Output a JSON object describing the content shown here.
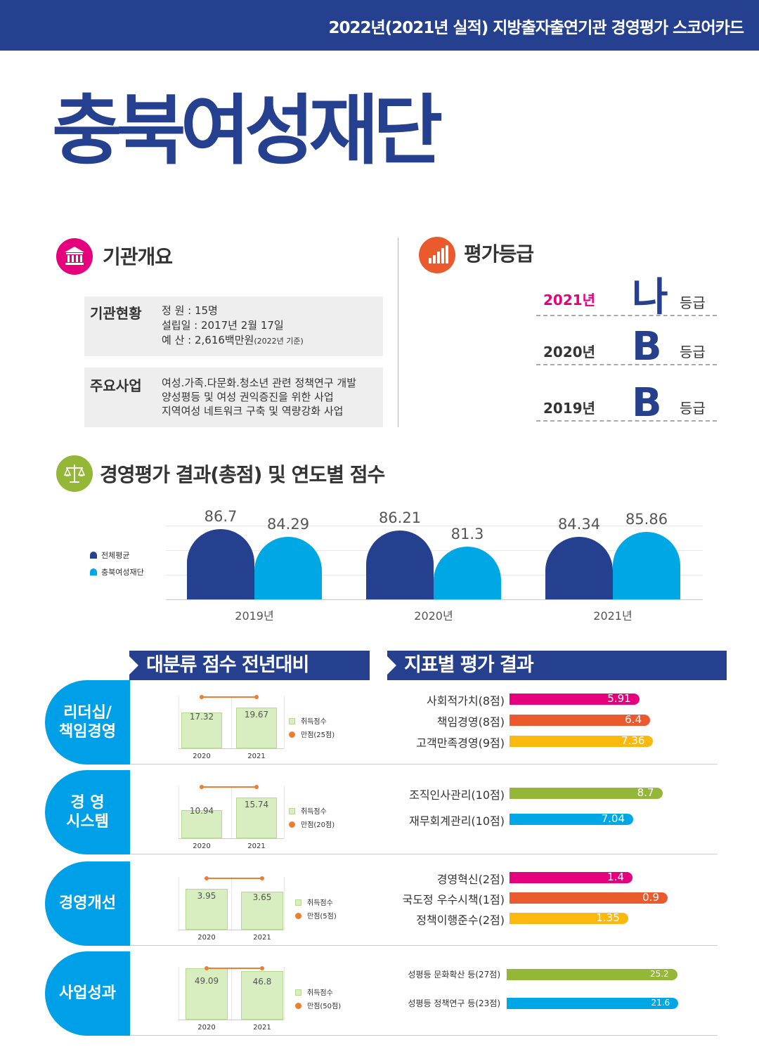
{
  "header": {
    "title": "2022년(2021년 실적) 지방출자출연기관 경영평가 스코어카드"
  },
  "organization": {
    "name": "충북여성재단"
  },
  "overview": {
    "heading": "기관개요",
    "status_label": "기관현황",
    "status_lines": [
      "정    원 : 15명",
      "설립일 : 2017년 2월 17일",
      "예    산 : 2,616백만원"
    ],
    "budget_note": "(2022년 기준)",
    "business_label": "주요사업",
    "business_lines": [
      "여성.가족.다문화.청소년 관련 정책연구 개발",
      "양성평등 및 여성 권익증진을 위한 사업",
      "지역여성 네트워크 구축 및 역량강화 사업"
    ]
  },
  "grades": {
    "heading": "평가등급",
    "unit": "등급",
    "rows": [
      {
        "year": "2021년",
        "grade": "나"
      },
      {
        "year": "2020년",
        "grade": "B"
      },
      {
        "year": "2019년",
        "grade": "B"
      }
    ]
  },
  "total_scores": {
    "heading": "경영평가 결과(총점) 및 연도별 점수",
    "legend": [
      "전체평균",
      "충북여성재단"
    ],
    "colors": {
      "average": "#25408f",
      "org": "#00a7e5"
    }
  },
  "chart_data": [
    {
      "type": "bar",
      "categories": [
        "2019년",
        "2020년",
        "2021년"
      ],
      "series": [
        {
          "name": "전체평균",
          "values": [
            86.7,
            86.21,
            84.34
          ]
        },
        {
          "name": "충북여성재단",
          "values": [
            84.29,
            81.3,
            85.86
          ]
        }
      ],
      "legend": "left"
    }
  ],
  "category_section": {
    "banner": "대분류 점수 전년대비",
    "legend_score": "취득점수",
    "items": [
      {
        "name_lines": [
          "리더십/",
          "책임경영"
        ],
        "years": [
          "2020",
          "2021"
        ],
        "values": [
          "17.32",
          "19.67"
        ],
        "max_label": "만점(25점)",
        "max": 25
      },
      {
        "name_lines": [
          "경  영",
          "시스템"
        ],
        "years": [
          "2020",
          "2021"
        ],
        "values": [
          "10.94",
          "15.74"
        ],
        "max_label": "만점(20점)",
        "max": 20
      },
      {
        "name_lines": [
          "경영개선"
        ],
        "years": [
          "2020",
          "2021"
        ],
        "values": [
          "3.95",
          "3.65"
        ],
        "max_label": "만점(5점)",
        "max": 5
      },
      {
        "name_lines": [
          "사업성과"
        ],
        "years": [
          "2020",
          "2021"
        ],
        "values": [
          "49.09",
          "46.8"
        ],
        "max_label": "만점(50점)",
        "max": 50
      }
    ]
  },
  "indicator_section": {
    "banner": "지표별 평가 결과",
    "groups": [
      [
        {
          "label": "사회적가치(8점)",
          "value": "5.91",
          "max": 8,
          "color": "#e5007e"
        },
        {
          "label": "책임경영(8점)",
          "value": "6.4",
          "max": 8,
          "color": "#ea5a2c"
        },
        {
          "label": "고객만족경영(9점)",
          "value": "7.36",
          "max": 9,
          "color": "#fbb80f"
        }
      ],
      [
        {
          "label": "조직인사관리(10점)",
          "value": "8.7",
          "max": 10,
          "color": "#95b737"
        },
        {
          "label": "재무회계관리(10점)",
          "value": "7.04",
          "max": 10,
          "color": "#00a7e5"
        }
      ],
      [
        {
          "label": "경영혁신(2점)",
          "value": "1.4",
          "max": 2,
          "color": "#e5007e"
        },
        {
          "label": "국도정 우수시책(1점)",
          "value": "0.9",
          "max": 1,
          "color": "#ea5a2c"
        },
        {
          "label": "정책이행준수(2점)",
          "value": "1.35",
          "max": 2,
          "color": "#fbb80f"
        }
      ],
      [
        {
          "label": "성평등 문화확산 등(27점)",
          "value": "25.2",
          "max": 27,
          "color": "#95b737"
        },
        {
          "label": "성평등 정책연구 등(23점)",
          "value": "21.6",
          "max": 23,
          "color": "#00a7e5"
        }
      ]
    ]
  }
}
